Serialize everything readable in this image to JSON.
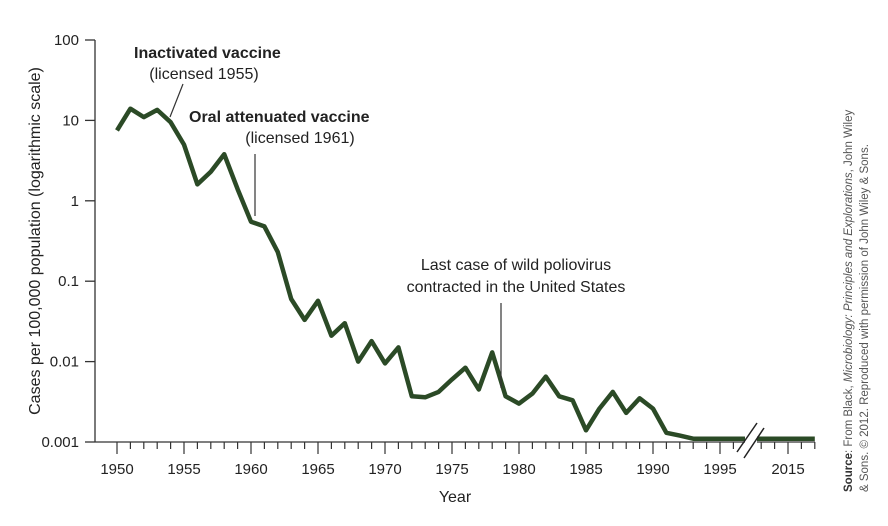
{
  "chart_data": {
    "type": "line",
    "xlabel": "Year",
    "ylabel": "Cases per 100,000 population (logarithmic scale)",
    "yscale": "log",
    "ylim": [
      0.001,
      100
    ],
    "yticks": [
      "100",
      "10",
      "1",
      "0.1",
      "0.01",
      "0.001"
    ],
    "ytick_values": [
      100,
      10,
      1,
      0.1,
      0.01,
      0.001
    ],
    "xticks": [
      "1950",
      "1955",
      "1960",
      "1965",
      "1970",
      "1975",
      "1980",
      "1985",
      "1990",
      "1995",
      "2015"
    ],
    "xtick_values": [
      1950,
      1955,
      1960,
      1965,
      1970,
      1975,
      1980,
      1985,
      1990,
      1995,
      2015
    ],
    "x_axis_break": [
      1997,
      2012
    ],
    "grid": false,
    "line_color": "#2b4a26",
    "series": [
      {
        "x": [
          1950,
          1951,
          1952,
          1953,
          1954,
          1955,
          1956,
          1957,
          1958,
          1959,
          1960,
          1961,
          1962,
          1963,
          1964,
          1965,
          1966,
          1967,
          1968,
          1969,
          1970,
          1971,
          1972,
          1973,
          1974,
          1975,
          1976,
          1977,
          1978,
          1979,
          1980,
          1981,
          1982,
          1983,
          1984,
          1985,
          1986,
          1987,
          1988,
          1989,
          1990,
          1991,
          1992,
          1993,
          1995,
          1997,
          2012,
          2015,
          2017
        ],
        "y": [
          7.5,
          14,
          11,
          13.5,
          9.5,
          5,
          1.6,
          2.3,
          3.8,
          1.4,
          0.55,
          0.48,
          0.23,
          0.06,
          0.033,
          0.057,
          0.021,
          0.03,
          0.01,
          0.018,
          0.0095,
          0.015,
          0.0037,
          0.0036,
          0.0042,
          0.006,
          0.0084,
          0.0045,
          0.013,
          0.0037,
          0.003,
          0.004,
          0.0065,
          0.0037,
          0.0033,
          0.0014,
          0.0026,
          0.0042,
          0.0023,
          0.0035,
          0.0026,
          0.0013,
          0.0012,
          0.0011,
          0.0011,
          0.0011,
          0.0011,
          0.0011,
          0.0011
        ]
      }
    ],
    "annotations": [
      {
        "title": "Inactivated vaccine",
        "subtitle": "(licensed 1955)"
      },
      {
        "title": "Oral attenuated vaccine",
        "subtitle": "(licensed 1961)"
      },
      {
        "line1": "Last case of wild poliovirus",
        "line2": "contracted in the United States"
      }
    ]
  },
  "source": {
    "label": "Source",
    "line1_a": ": From Black, ",
    "line1_italic": "Microbiology: Principles and Explorations",
    "line1_b": ", John Wiley",
    "line2": "& Sons. © 2012. Reproduced with permission of John Wiley & Sons."
  }
}
